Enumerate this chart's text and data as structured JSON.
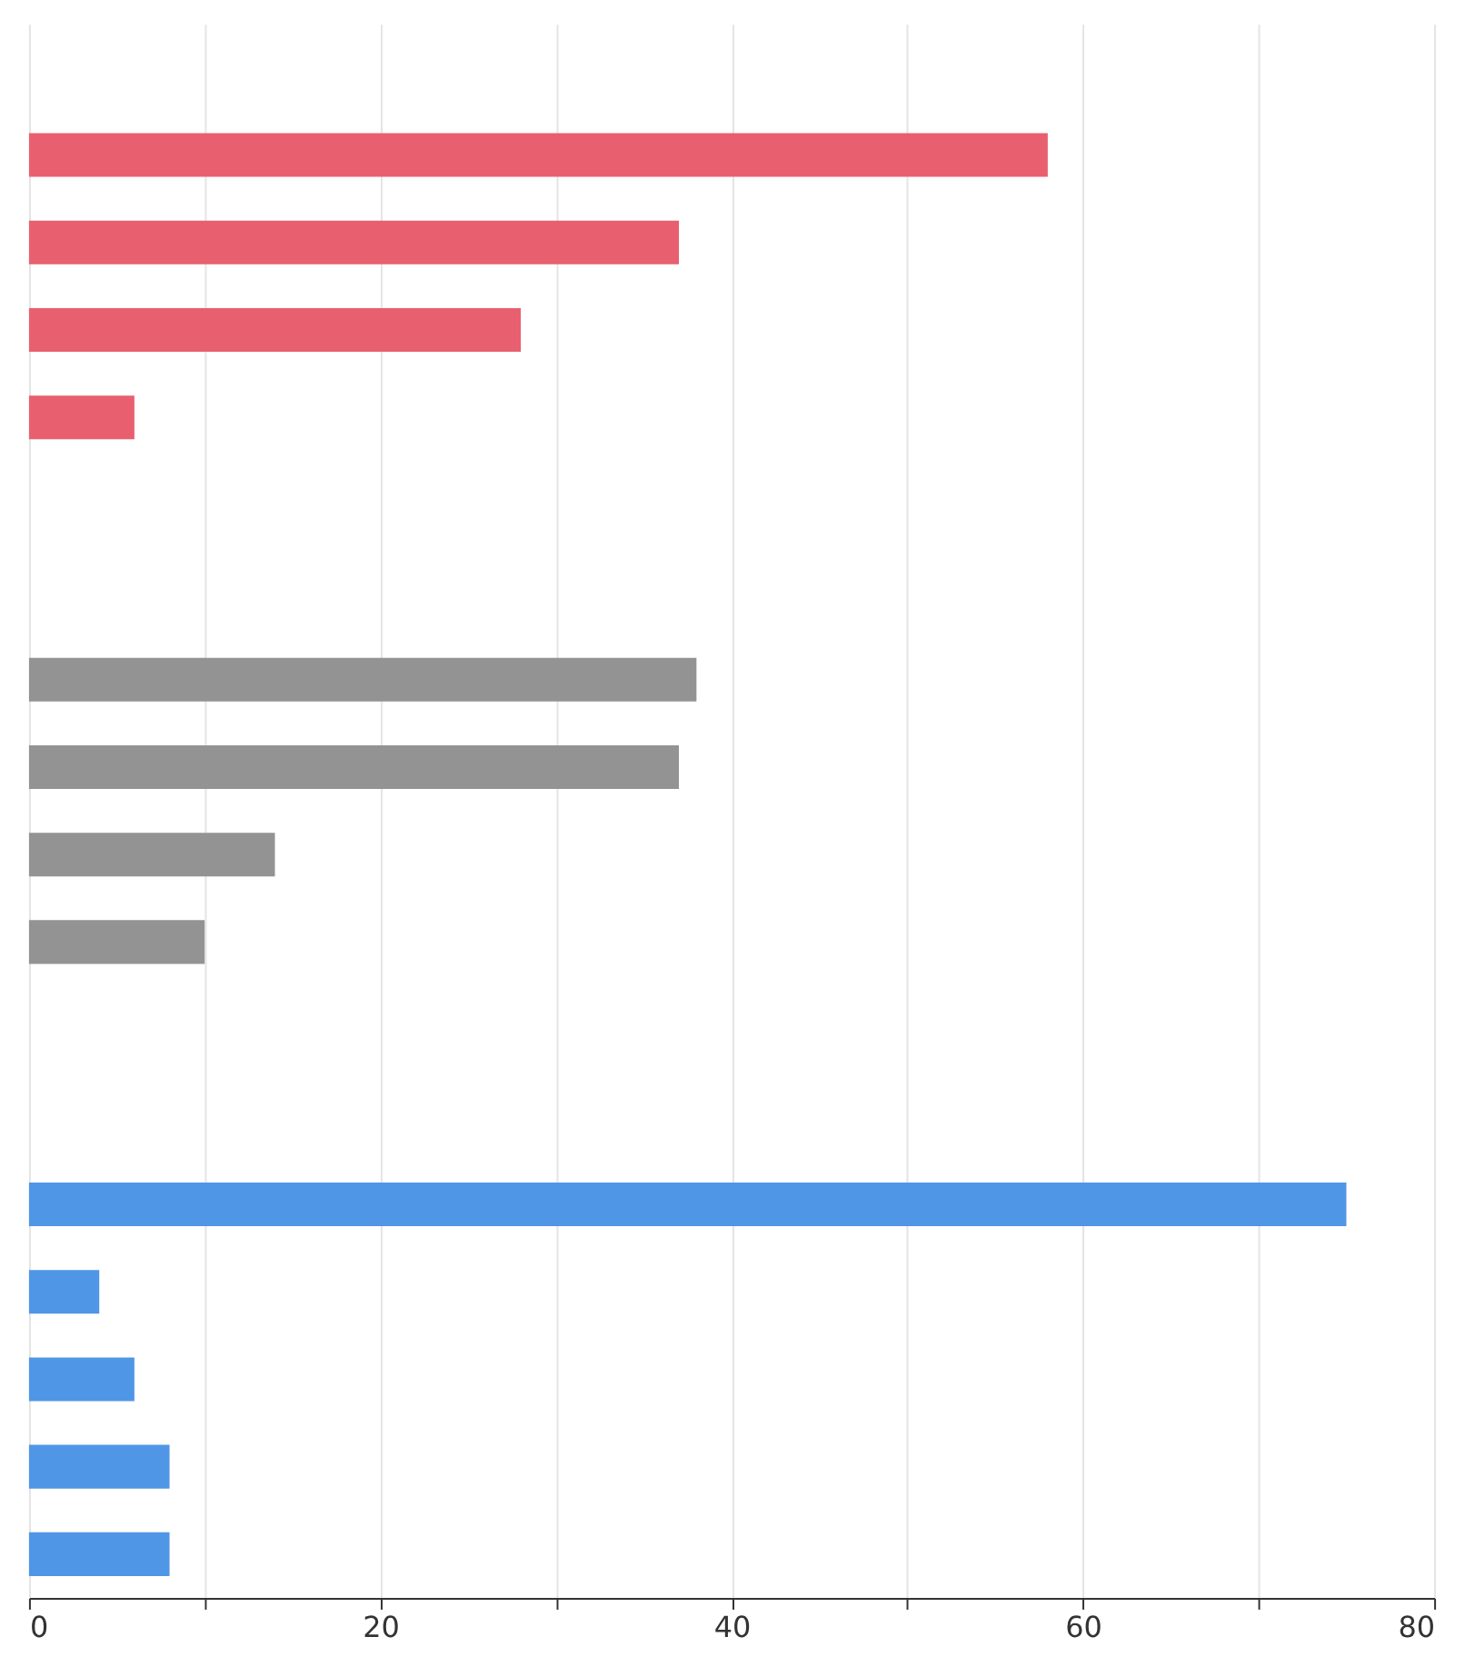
{
  "chart_data": {
    "type": "bar",
    "orientation": "horizontal",
    "categories": [
      null,
      null,
      null,
      null,
      null,
      null,
      null,
      null,
      null,
      null,
      null,
      null,
      null,
      null,
      null,
      null,
      null,
      null
    ],
    "series": [
      {
        "color": "#e8606f",
        "values": [
          null,
          58,
          37,
          28,
          6,
          null,
          null,
          null,
          null,
          null,
          null,
          null,
          null,
          null,
          null,
          null,
          null,
          null
        ]
      },
      {
        "color": "#939393",
        "values": [
          null,
          null,
          null,
          null,
          null,
          null,
          null,
          38,
          37,
          14,
          10,
          null,
          null,
          null,
          null,
          null,
          null,
          null
        ]
      },
      {
        "color": "#5096e6",
        "values": [
          null,
          null,
          null,
          null,
          null,
          null,
          null,
          null,
          null,
          null,
          null,
          null,
          null,
          75,
          4,
          6,
          8,
          8
        ]
      }
    ],
    "xlim": [
      0,
      80
    ],
    "xticks": [
      0,
      {
        "value": 10,
        "label": null
      },
      20,
      {
        "value": 30,
        "label": null
      },
      40,
      {
        "value": 50,
        "label": null
      },
      60,
      {
        "value": 70,
        "label": null
      },
      80
    ],
    "grid": "x",
    "tick_labels": "x",
    "legend": false
  }
}
